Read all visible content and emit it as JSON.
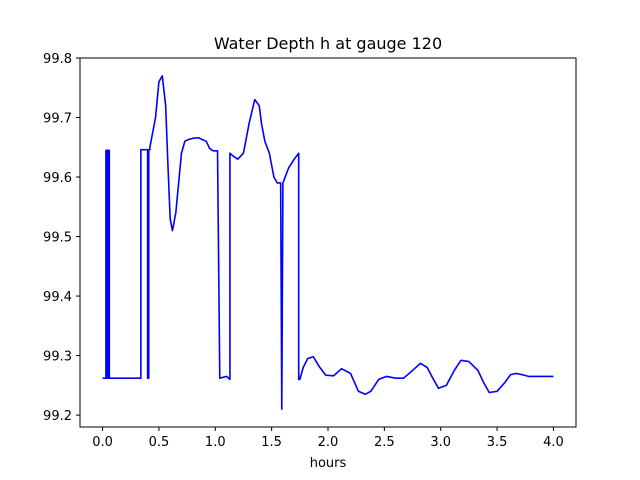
{
  "chart_data": {
    "type": "line",
    "title": "Water Depth h at gauge 120",
    "xlabel": "hours",
    "ylabel": "",
    "xlim": [
      -0.2,
      4.2
    ],
    "ylim": [
      99.18,
      99.8
    ],
    "xticks": [
      0.0,
      0.5,
      1.0,
      1.5,
      2.0,
      2.5,
      3.0,
      3.5,
      4.0
    ],
    "xtick_labels": [
      "0.0",
      "0.5",
      "1.0",
      "1.5",
      "2.0",
      "2.5",
      "3.0",
      "3.5",
      "4.0"
    ],
    "yticks": [
      99.2,
      99.3,
      99.4,
      99.5,
      99.6,
      99.7,
      99.8
    ],
    "ytick_labels": [
      "99.2",
      "99.3",
      "99.4",
      "99.5",
      "99.6",
      "99.7",
      "99.8"
    ],
    "grid": false,
    "legend": "none",
    "series": [
      {
        "color": "#0000ff",
        "x": [
          0.0,
          0.03,
          0.03,
          0.04,
          0.04,
          0.05,
          0.05,
          0.06,
          0.06,
          0.34,
          0.34,
          0.4,
          0.4,
          0.41,
          0.41,
          0.42,
          0.42,
          0.47,
          0.5,
          0.53,
          0.56,
          0.58,
          0.6,
          0.62,
          0.65,
          0.68,
          0.7,
          0.73,
          0.76,
          0.8,
          0.85,
          0.92,
          0.95,
          0.98,
          1.02,
          1.04,
          1.04,
          1.1,
          1.13,
          1.13,
          1.16,
          1.2,
          1.25,
          1.3,
          1.35,
          1.39,
          1.41,
          1.44,
          1.48,
          1.52,
          1.55,
          1.58,
          1.59,
          1.59,
          1.6,
          1.6,
          1.62,
          1.65,
          1.7,
          1.74,
          1.74,
          1.75,
          1.78,
          1.82,
          1.87,
          1.92,
          1.98,
          2.05,
          2.12,
          2.2,
          2.27,
          2.33,
          2.38,
          2.45,
          2.52,
          2.6,
          2.67,
          2.75,
          2.82,
          2.88,
          2.93,
          2.98,
          3.05,
          3.12,
          3.18,
          3.25,
          3.33,
          3.38,
          3.43,
          3.5,
          3.57,
          3.62,
          3.67,
          3.72,
          3.78,
          3.85,
          3.91,
          3.96,
          4.0
        ],
        "y": [
          99.262,
          99.262,
          99.645,
          99.645,
          99.262,
          99.262,
          99.645,
          99.645,
          99.262,
          99.262,
          99.646,
          99.646,
          99.262,
          99.262,
          99.646,
          99.646,
          99.65,
          99.7,
          99.76,
          99.77,
          99.72,
          99.62,
          99.53,
          99.51,
          99.54,
          99.6,
          99.64,
          99.66,
          99.663,
          99.665,
          99.666,
          99.66,
          99.648,
          99.644,
          99.644,
          99.262,
          99.262,
          99.265,
          99.26,
          99.64,
          99.635,
          99.63,
          99.64,
          99.69,
          99.73,
          99.72,
          99.69,
          99.66,
          99.64,
          99.6,
          99.59,
          99.59,
          99.21,
          99.21,
          99.588,
          99.59,
          99.6,
          99.615,
          99.63,
          99.64,
          99.26,
          99.26,
          99.28,
          99.295,
          99.298,
          99.282,
          99.267,
          99.266,
          99.278,
          99.27,
          99.24,
          99.235,
          99.24,
          99.26,
          99.265,
          99.262,
          99.262,
          99.275,
          99.287,
          99.28,
          99.262,
          99.245,
          99.25,
          99.275,
          99.292,
          99.29,
          99.275,
          99.255,
          99.238,
          99.24,
          99.255,
          99.268,
          99.27,
          99.268,
          99.265,
          99.265,
          99.265,
          99.265,
          99.265
        ]
      }
    ]
  }
}
